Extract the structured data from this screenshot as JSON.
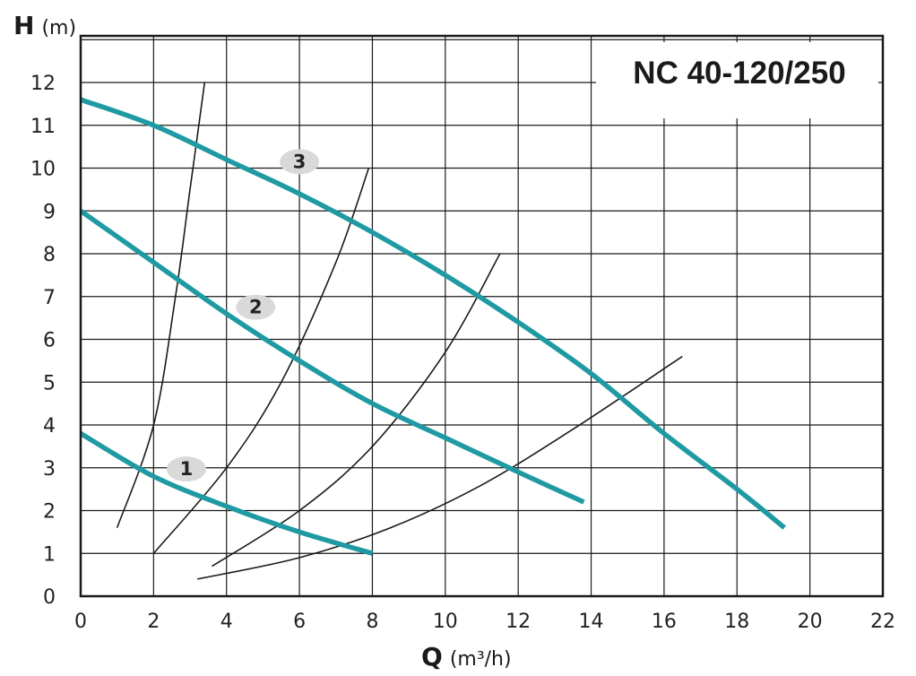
{
  "chart_data": {
    "type": "line",
    "title": "NC 40-120/250",
    "xlabel": {
      "symbol": "Q",
      "unit": "(m³/h)"
    },
    "ylabel": {
      "symbol": "H",
      "unit": "(m)"
    },
    "xlim": [
      0,
      22
    ],
    "ylim": [
      0,
      13
    ],
    "x_ticks": [
      "0",
      "2",
      "4",
      "6",
      "8",
      "10",
      "12",
      "14",
      "16",
      "18",
      "20",
      "22"
    ],
    "y_ticks": [
      "0",
      "1",
      "2",
      "3",
      "4",
      "5",
      "6",
      "7",
      "8",
      "9",
      "10",
      "11",
      "12"
    ],
    "grid": true,
    "colors": {
      "pump_curve": "#1f9aa3",
      "system_curve": "#1a1a1a",
      "grid": "#1a1a1a",
      "badge": "#d9d9d9"
    },
    "pump_curves": [
      {
        "name": "1",
        "x": [
          0,
          2,
          4,
          6,
          8
        ],
        "y": [
          3.8,
          2.8,
          2.1,
          1.5,
          1.0
        ],
        "label_at": [
          2.9,
          2.97
        ]
      },
      {
        "name": "2",
        "x": [
          0,
          2,
          4,
          6,
          8,
          10,
          12,
          13.8
        ],
        "y": [
          9.0,
          7.8,
          6.6,
          5.5,
          4.5,
          3.7,
          2.9,
          2.2
        ],
        "label_at": [
          4.8,
          6.75
        ]
      },
      {
        "name": "3",
        "x": [
          0,
          2,
          4,
          6,
          8,
          10,
          12,
          14,
          16,
          18,
          19.3
        ],
        "y": [
          11.6,
          11.0,
          10.2,
          9.4,
          8.5,
          7.5,
          6.4,
          5.2,
          3.8,
          2.5,
          1.6
        ],
        "label_at": [
          6.0,
          10.15
        ]
      }
    ],
    "system_curves": [
      {
        "x": [
          1.0,
          2.0,
          2.6,
          3.0,
          3.4
        ],
        "y": [
          1.6,
          4.0,
          7.0,
          9.5,
          12.0
        ]
      },
      {
        "x": [
          2.0,
          4.0,
          5.5,
          7.0,
          7.9
        ],
        "y": [
          1.0,
          3.0,
          5.0,
          7.8,
          10.0
        ]
      },
      {
        "x": [
          3.6,
          6.0,
          8.0,
          10.0,
          11.5
        ],
        "y": [
          0.7,
          2.0,
          3.5,
          5.7,
          8.0
        ]
      },
      {
        "x": [
          3.2,
          6.0,
          8.5,
          11.0,
          13.5,
          16.5
        ],
        "y": [
          0.4,
          0.9,
          1.6,
          2.6,
          3.9,
          5.6
        ]
      }
    ]
  }
}
